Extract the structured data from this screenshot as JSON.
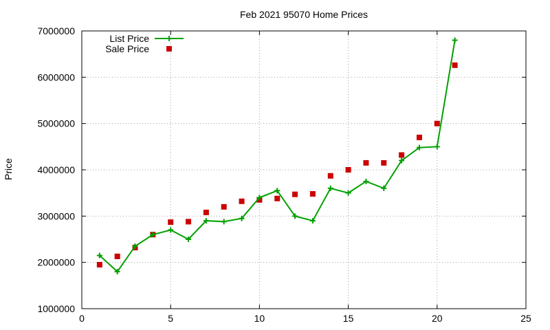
{
  "chart_data": {
    "type": "line",
    "title": "Feb 2021 95070 Home Prices",
    "xlabel": "",
    "ylabel": "Price",
    "xlim": [
      0,
      25
    ],
    "ylim": [
      1000000,
      7000000
    ],
    "x_ticks": [
      "0",
      "5",
      "10",
      "15",
      "20",
      "25"
    ],
    "y_ticks": [
      "1000000",
      "2000000",
      "3000000",
      "4000000",
      "5000000",
      "6000000",
      "7000000"
    ],
    "grid": true,
    "legend_position": "top-left",
    "series": [
      {
        "name": "List Price",
        "type": "line",
        "marker": "plus",
        "color": "#00a000",
        "x": [
          1,
          2,
          3,
          4,
          5,
          6,
          7,
          8,
          9,
          10,
          11,
          12,
          13,
          14,
          15,
          16,
          17,
          18,
          19,
          20,
          21
        ],
        "values": [
          2150000,
          1800000,
          2350000,
          2600000,
          2700000,
          2500000,
          2900000,
          2880000,
          2950000,
          3400000,
          3550000,
          3000000,
          2900000,
          3600000,
          3500000,
          3750000,
          3600000,
          4200000,
          4480000,
          4500000,
          6800000
        ]
      },
      {
        "name": "Sale Price",
        "type": "scatter",
        "marker": "square",
        "color": "#cc0000",
        "x": [
          1,
          2,
          3,
          4,
          5,
          6,
          7,
          8,
          9,
          10,
          11,
          12,
          13,
          14,
          15,
          16,
          17,
          18,
          19,
          20,
          21
        ],
        "values": [
          1950000,
          2130000,
          2320000,
          2600000,
          2870000,
          2880000,
          3080000,
          3200000,
          3320000,
          3350000,
          3380000,
          3470000,
          3480000,
          3870000,
          4000000,
          4150000,
          4150000,
          4320000,
          4700000,
          5000000,
          6260000
        ]
      }
    ]
  }
}
